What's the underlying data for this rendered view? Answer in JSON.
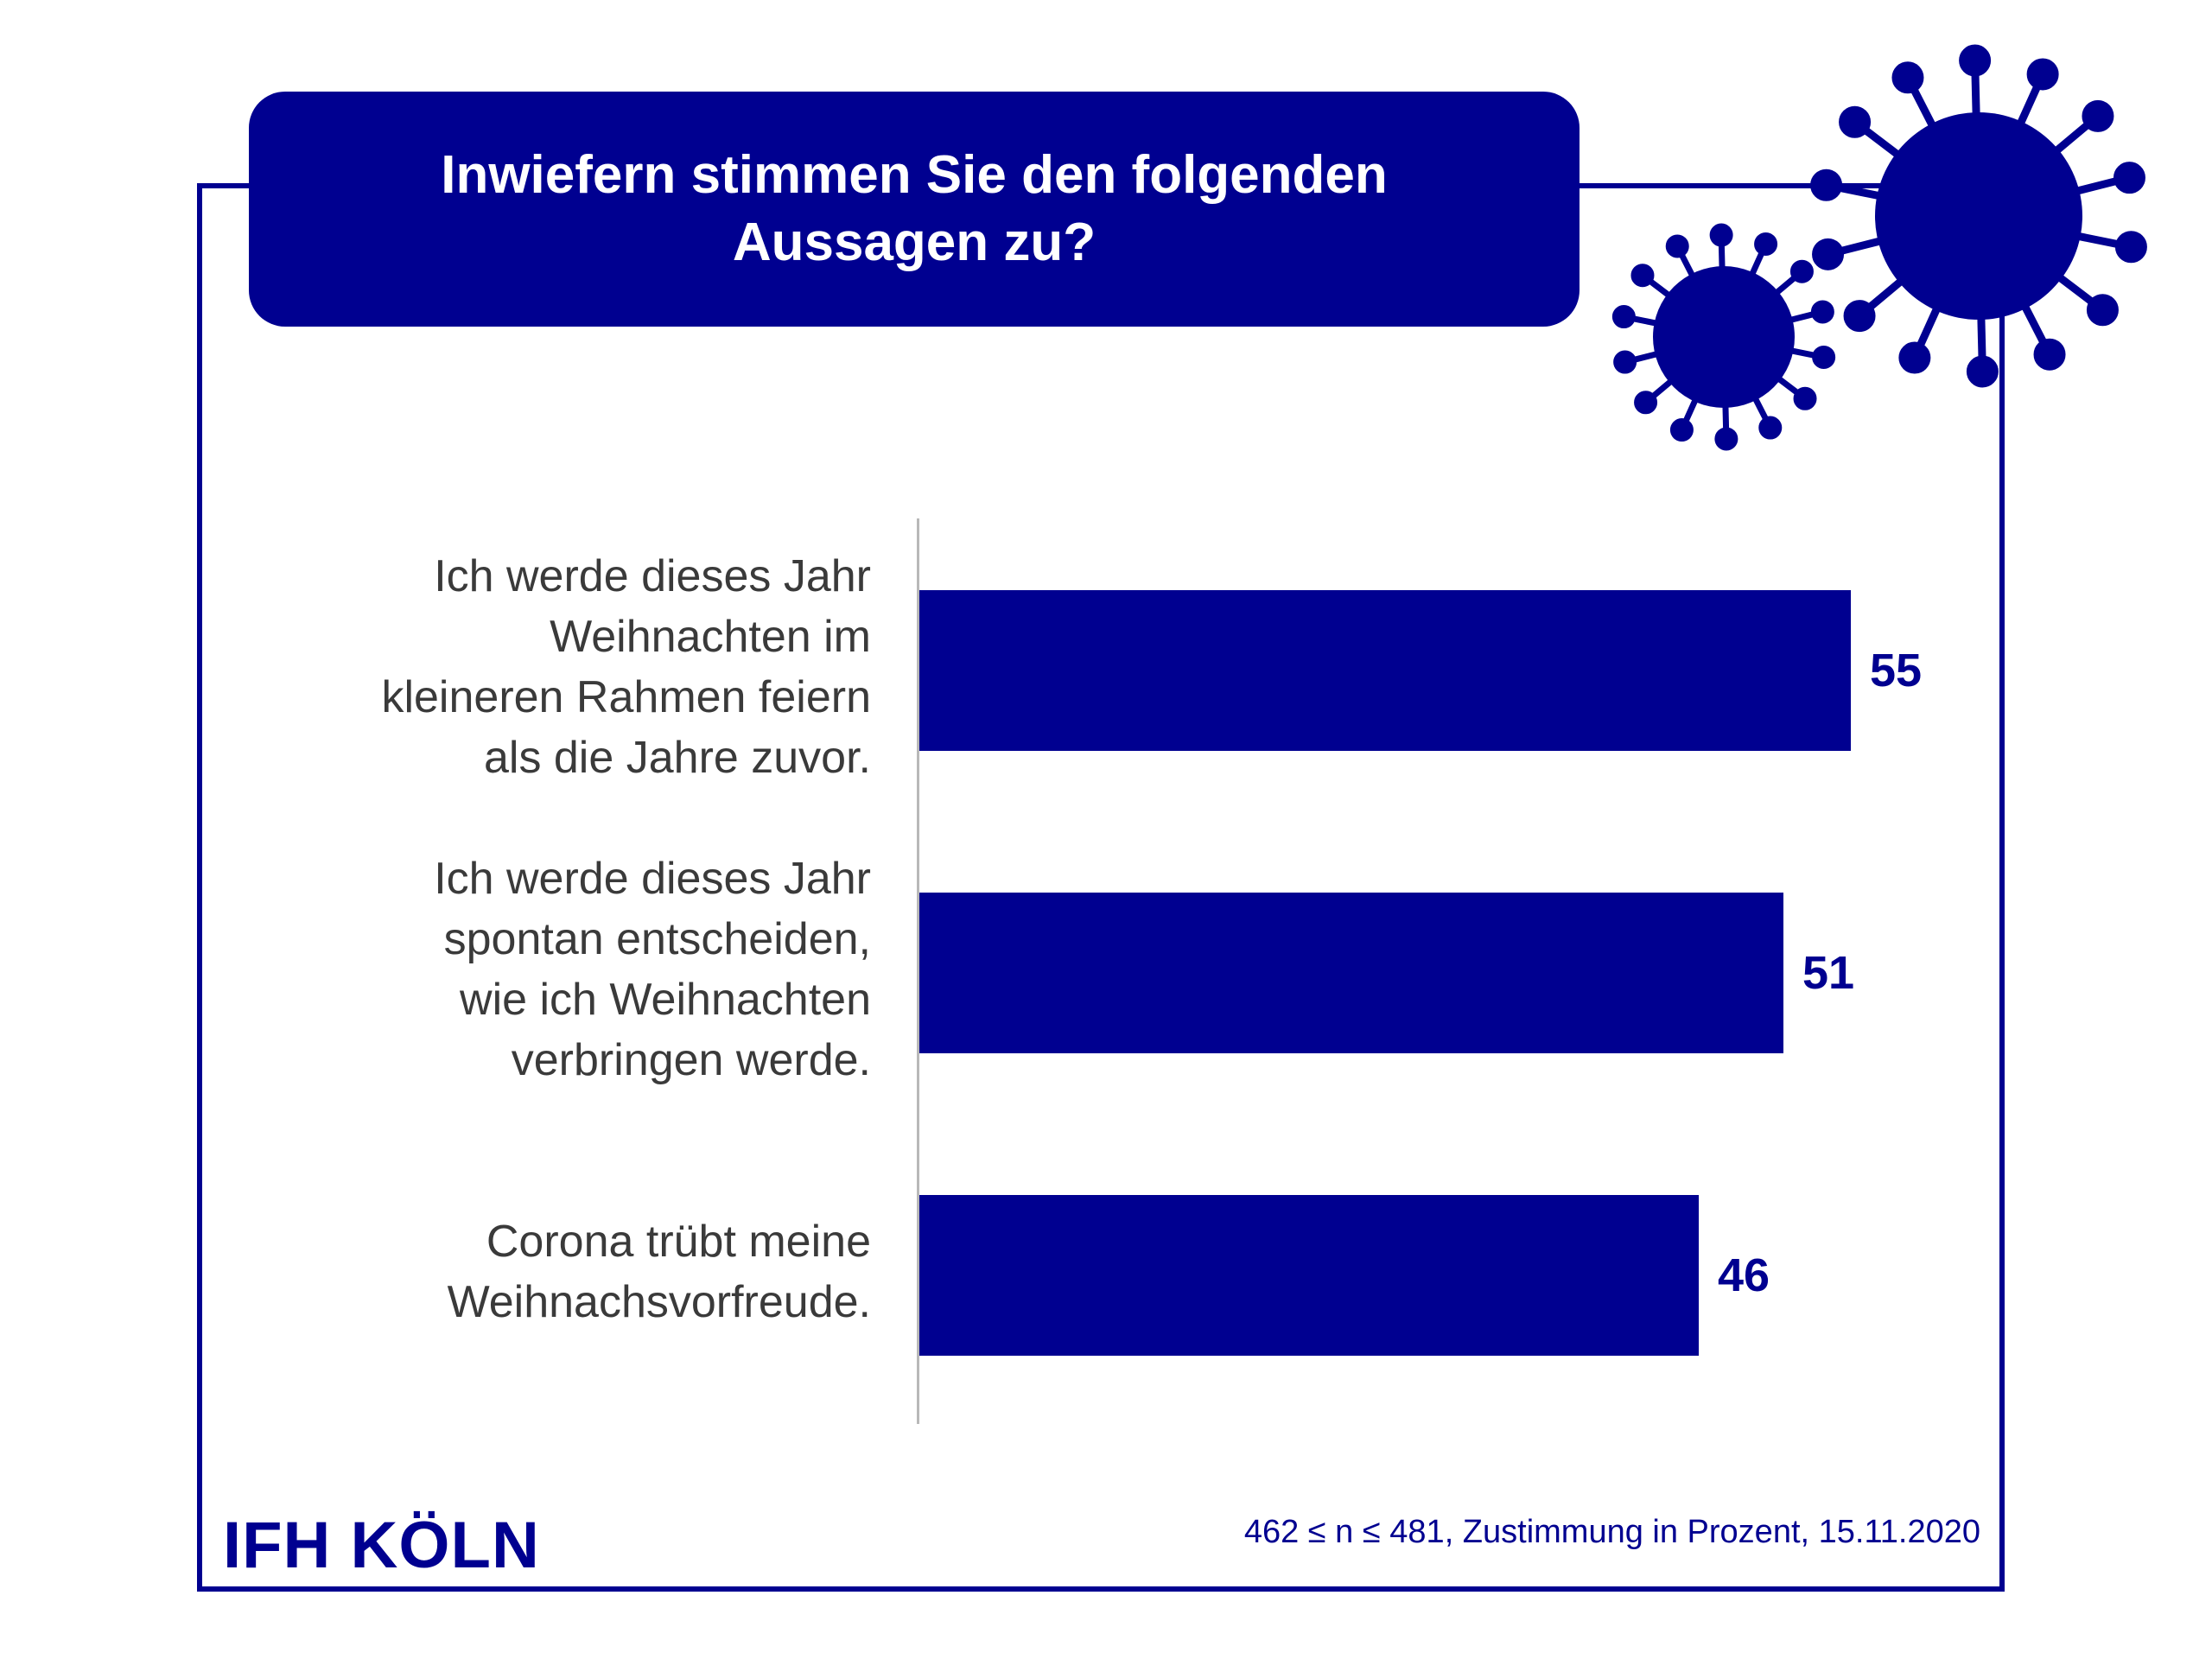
{
  "title": "Inwiefern stimmen Sie den folgenden\nAussagen zu?",
  "logo": "IFH KÖLN",
  "footnote": "462 ≤ n ≤ 481, Zustimmung in Prozent, 15.11.2020",
  "colors": {
    "accent": "#000090",
    "label": "#3a3a3a",
    "axis": "#b8b8b8"
  },
  "icons": [
    "virus-icon-large",
    "virus-icon-small"
  ],
  "chart_data": {
    "type": "bar",
    "orientation": "horizontal",
    "title": "Inwiefern stimmen Sie den folgenden Aussagen zu?",
    "categories": [
      "Ich werde dieses Jahr\nWeihnachten im\nkleineren Rahmen feiern\nals die Jahre zuvor.",
      "Ich werde dieses Jahr\nspontan entscheiden,\nwie ich Weihnachten\nverbringen werde.",
      "Corona trübt meine\nWeihnachsvorfreude."
    ],
    "values": [
      55,
      51,
      46
    ],
    "unit": "Prozent",
    "xlim": [
      0,
      100
    ],
    "grid": false,
    "legend": "none"
  }
}
